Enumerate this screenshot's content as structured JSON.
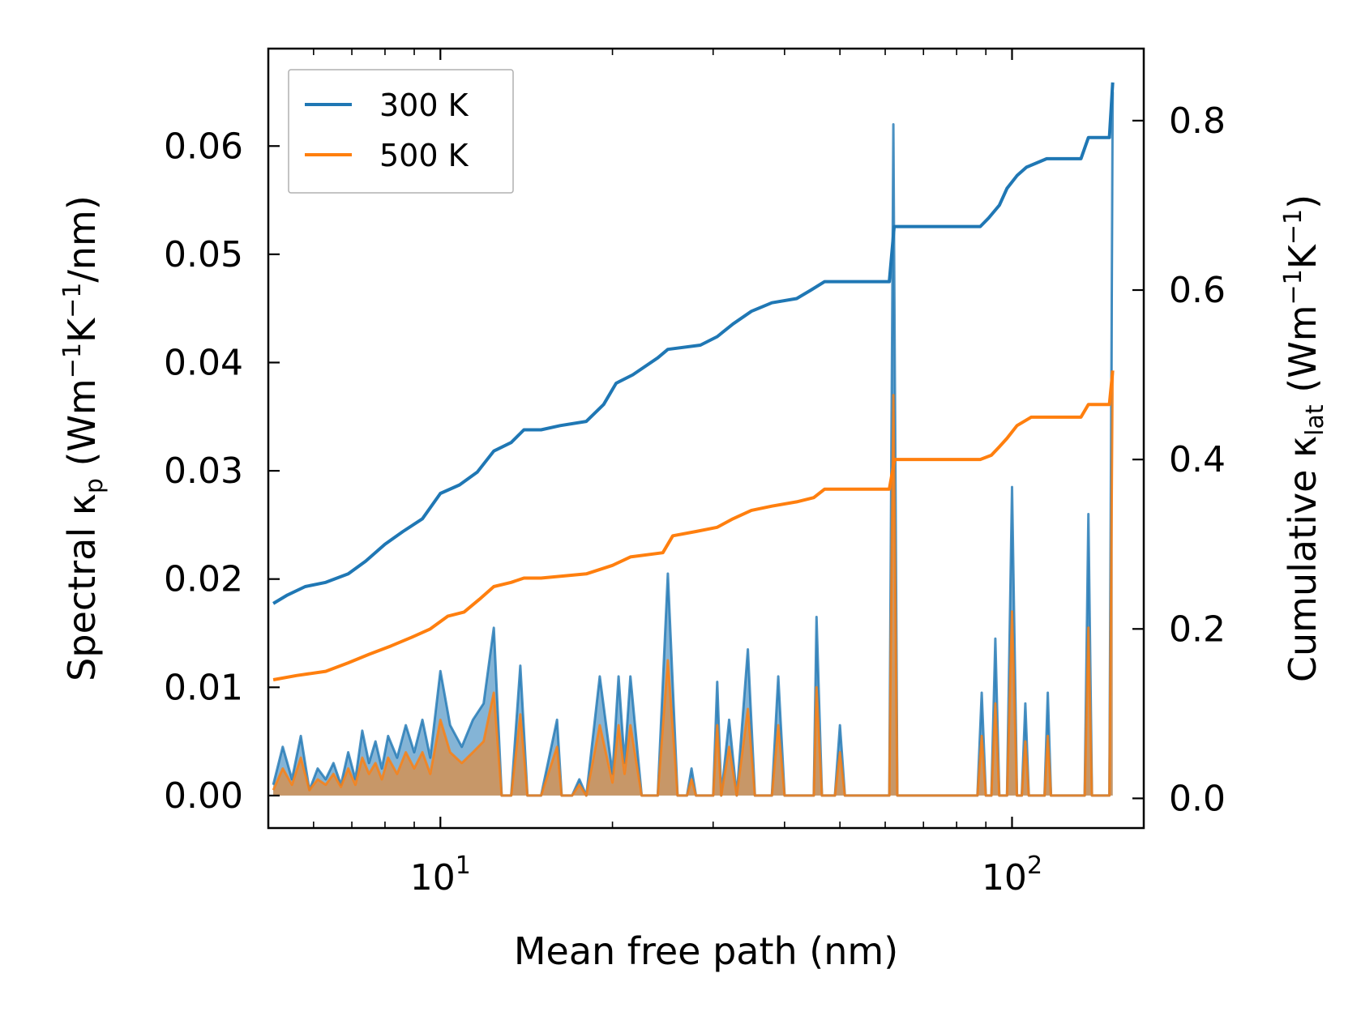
{
  "chart_data": {
    "type": "line",
    "xscale": "log",
    "xlabel": "Mean free path (nm)",
    "ylabel_left": {
      "main": "Spectral κ",
      "sub": "p",
      "unit_open": " (Wm",
      "sup1": "−1",
      "unit_mid": "K",
      "sup2": "−1",
      "unit_close": "/nm)"
    },
    "ylabel_right": {
      "main": "Cumulative κ",
      "sub": "lat",
      "unit_open": " (Wm",
      "sup1": "−1",
      "unit_mid": "K",
      "sup2": "−1",
      "unit_close": ")"
    },
    "xlim": [
      5,
      170
    ],
    "ylim_left": [
      -0.003,
      0.069
    ],
    "ylim_right": [
      -0.035,
      0.885
    ],
    "x_ticks": [
      {
        "value": 10,
        "base": "10",
        "exp": "1"
      },
      {
        "value": 100,
        "base": "10",
        "exp": "2"
      }
    ],
    "y_ticks_left": [
      {
        "value": 0.0,
        "label": "0.00"
      },
      {
        "value": 0.01,
        "label": "0.01"
      },
      {
        "value": 0.02,
        "label": "0.02"
      },
      {
        "value": 0.03,
        "label": "0.03"
      },
      {
        "value": 0.04,
        "label": "0.04"
      },
      {
        "value": 0.05,
        "label": "0.05"
      },
      {
        "value": 0.06,
        "label": "0.06"
      }
    ],
    "y_ticks_right": [
      {
        "value": 0.0,
        "label": "0.0"
      },
      {
        "value": 0.2,
        "label": "0.2"
      },
      {
        "value": 0.4,
        "label": "0.4"
      },
      {
        "value": 0.6,
        "label": "0.6"
      },
      {
        "value": 0.8,
        "label": "0.8"
      }
    ],
    "legend": {
      "position": "top-left",
      "entries": [
        "300 K",
        "500 K"
      ]
    },
    "series": [
      {
        "name": "300 K",
        "color": "#1f77b4",
        "cumulative": [
          [
            5.1,
            0.23
          ],
          [
            5.4,
            0.24
          ],
          [
            5.8,
            0.25
          ],
          [
            6.3,
            0.255
          ],
          [
            6.9,
            0.265
          ],
          [
            7.4,
            0.28
          ],
          [
            8.0,
            0.3
          ],
          [
            8.6,
            0.315
          ],
          [
            9.3,
            0.33
          ],
          [
            10.0,
            0.36
          ],
          [
            10.8,
            0.37
          ],
          [
            11.6,
            0.385
          ],
          [
            12.4,
            0.41
          ],
          [
            13.3,
            0.42
          ],
          [
            14.0,
            0.435
          ],
          [
            15.0,
            0.435
          ],
          [
            16.2,
            0.44
          ],
          [
            18.0,
            0.445
          ],
          [
            19.3,
            0.465
          ],
          [
            20.3,
            0.49
          ],
          [
            21.7,
            0.5
          ],
          [
            24.0,
            0.52
          ],
          [
            25.0,
            0.53
          ],
          [
            28.5,
            0.535
          ],
          [
            30.5,
            0.545
          ],
          [
            32.5,
            0.56
          ],
          [
            35.0,
            0.575
          ],
          [
            38.0,
            0.585
          ],
          [
            42.0,
            0.59
          ],
          [
            44.5,
            0.6
          ],
          [
            47.0,
            0.61
          ],
          [
            61.0,
            0.61
          ],
          [
            62.2,
            0.675
          ],
          [
            70.0,
            0.675
          ],
          [
            88.0,
            0.675
          ],
          [
            91.0,
            0.685
          ],
          [
            95.0,
            0.7
          ],
          [
            98.0,
            0.72
          ],
          [
            102.0,
            0.735
          ],
          [
            106.0,
            0.745
          ],
          [
            115.0,
            0.755
          ],
          [
            132.0,
            0.755
          ],
          [
            136.0,
            0.78
          ],
          [
            148.0,
            0.78
          ],
          [
            150.0,
            0.845
          ]
        ],
        "spectral": [
          [
            5.1,
            0.001
          ],
          [
            5.3,
            0.0045
          ],
          [
            5.5,
            0.0015
          ],
          [
            5.7,
            0.0055
          ],
          [
            5.9,
            0.0005
          ],
          [
            6.1,
            0.0025
          ],
          [
            6.3,
            0.0015
          ],
          [
            6.5,
            0.003
          ],
          [
            6.7,
            0.001
          ],
          [
            6.9,
            0.004
          ],
          [
            7.1,
            0.0015
          ],
          [
            7.3,
            0.006
          ],
          [
            7.5,
            0.003
          ],
          [
            7.7,
            0.005
          ],
          [
            7.9,
            0.0025
          ],
          [
            8.1,
            0.0055
          ],
          [
            8.4,
            0.0035
          ],
          [
            8.7,
            0.0065
          ],
          [
            9.0,
            0.004
          ],
          [
            9.3,
            0.007
          ],
          [
            9.6,
            0.0035
          ],
          [
            10.0,
            0.0115
          ],
          [
            10.4,
            0.0065
          ],
          [
            10.9,
            0.0045
          ],
          [
            11.4,
            0.007
          ],
          [
            11.9,
            0.0085
          ],
          [
            12.4,
            0.0155
          ],
          [
            12.8,
            0.0
          ],
          [
            13.3,
            0.0
          ],
          [
            13.8,
            0.012
          ],
          [
            14.2,
            0.0
          ],
          [
            15.0,
            0.0
          ],
          [
            16.0,
            0.007
          ],
          [
            16.3,
            0.0
          ],
          [
            17.0,
            0.0
          ],
          [
            17.5,
            0.0015
          ],
          [
            18.0,
            0.0
          ],
          [
            19.0,
            0.011
          ],
          [
            20.0,
            0.002
          ],
          [
            20.5,
            0.011
          ],
          [
            21.0,
            0.003
          ],
          [
            21.5,
            0.011
          ],
          [
            22.5,
            0.0
          ],
          [
            24.0,
            0.0
          ],
          [
            25.0,
            0.0205
          ],
          [
            26.0,
            0.0
          ],
          [
            27.0,
            0.0
          ],
          [
            27.5,
            0.0025
          ],
          [
            28.0,
            0.0
          ],
          [
            30.0,
            0.0
          ],
          [
            30.5,
            0.0105
          ],
          [
            31.0,
            0.0
          ],
          [
            32.0,
            0.007
          ],
          [
            33.0,
            0.0
          ],
          [
            34.5,
            0.0135
          ],
          [
            35.5,
            0.0
          ],
          [
            38.0,
            0.0
          ],
          [
            39.0,
            0.011
          ],
          [
            40.0,
            0.0
          ],
          [
            45.0,
            0.0
          ],
          [
            45.5,
            0.0165
          ],
          [
            46.5,
            0.0
          ],
          [
            49.0,
            0.0
          ],
          [
            50.0,
            0.0065
          ],
          [
            51.0,
            0.0
          ],
          [
            61.0,
            0.0
          ],
          [
            62.0,
            0.062
          ],
          [
            63.0,
            0.0
          ],
          [
            85.0,
            0.0
          ],
          [
            87.0,
            0.0
          ],
          [
            88.5,
            0.0095
          ],
          [
            90.0,
            0.0
          ],
          [
            92.0,
            0.0
          ],
          [
            93.5,
            0.0145
          ],
          [
            95.0,
            0.0
          ],
          [
            98.0,
            0.0
          ],
          [
            100.0,
            0.0285
          ],
          [
            102.0,
            0.0
          ],
          [
            104.0,
            0.0
          ],
          [
            105.5,
            0.0085
          ],
          [
            107.0,
            0.0
          ],
          [
            114.0,
            0.0
          ],
          [
            115.5,
            0.0095
          ],
          [
            117.0,
            0.0
          ],
          [
            134.0,
            0.0
          ],
          [
            136.0,
            0.026
          ],
          [
            138.0,
            0.0
          ],
          [
            148.0,
            0.0
          ],
          [
            150.0,
            0.065
          ]
        ]
      },
      {
        "name": "500 K",
        "color": "#ff7f0e",
        "cumulative": [
          [
            5.1,
            0.14
          ],
          [
            5.6,
            0.145
          ],
          [
            6.3,
            0.15
          ],
          [
            6.9,
            0.16
          ],
          [
            7.5,
            0.17
          ],
          [
            8.2,
            0.18
          ],
          [
            8.9,
            0.19
          ],
          [
            9.6,
            0.2
          ],
          [
            10.3,
            0.215
          ],
          [
            11.0,
            0.22
          ],
          [
            11.7,
            0.235
          ],
          [
            12.4,
            0.25
          ],
          [
            13.3,
            0.255
          ],
          [
            14.0,
            0.26
          ],
          [
            15.0,
            0.26
          ],
          [
            18.0,
            0.265
          ],
          [
            20.0,
            0.275
          ],
          [
            21.5,
            0.285
          ],
          [
            24.5,
            0.29
          ],
          [
            25.5,
            0.31
          ],
          [
            28.0,
            0.315
          ],
          [
            30.5,
            0.32
          ],
          [
            32.5,
            0.33
          ],
          [
            35.0,
            0.34
          ],
          [
            38.0,
            0.345
          ],
          [
            42.0,
            0.35
          ],
          [
            45.0,
            0.355
          ],
          [
            47.0,
            0.365
          ],
          [
            61.0,
            0.365
          ],
          [
            62.3,
            0.4
          ],
          [
            70.0,
            0.4
          ],
          [
            88.0,
            0.4
          ],
          [
            92.0,
            0.405
          ],
          [
            95.0,
            0.415
          ],
          [
            98.0,
            0.425
          ],
          [
            102.0,
            0.44
          ],
          [
            108.0,
            0.45
          ],
          [
            132.0,
            0.45
          ],
          [
            136.0,
            0.465
          ],
          [
            148.0,
            0.465
          ],
          [
            150.0,
            0.505
          ]
        ],
        "spectral": [
          [
            5.1,
            0.0005
          ],
          [
            5.3,
            0.0025
          ],
          [
            5.5,
            0.001
          ],
          [
            5.7,
            0.0035
          ],
          [
            5.9,
            0.0005
          ],
          [
            6.1,
            0.0015
          ],
          [
            6.3,
            0.001
          ],
          [
            6.5,
            0.002
          ],
          [
            6.7,
            0.0008
          ],
          [
            6.9,
            0.0025
          ],
          [
            7.1,
            0.001
          ],
          [
            7.3,
            0.0035
          ],
          [
            7.5,
            0.002
          ],
          [
            7.7,
            0.003
          ],
          [
            7.9,
            0.0015
          ],
          [
            8.1,
            0.0035
          ],
          [
            8.4,
            0.002
          ],
          [
            8.7,
            0.004
          ],
          [
            9.0,
            0.0025
          ],
          [
            9.3,
            0.004
          ],
          [
            9.6,
            0.002
          ],
          [
            10.0,
            0.007
          ],
          [
            10.4,
            0.004
          ],
          [
            10.9,
            0.003
          ],
          [
            11.4,
            0.004
          ],
          [
            11.9,
            0.005
          ],
          [
            12.4,
            0.0095
          ],
          [
            12.8,
            0.0
          ],
          [
            13.3,
            0.0
          ],
          [
            13.8,
            0.0075
          ],
          [
            14.2,
            0.0
          ],
          [
            15.0,
            0.0
          ],
          [
            16.0,
            0.0045
          ],
          [
            16.3,
            0.0
          ],
          [
            17.0,
            0.0
          ],
          [
            17.5,
            0.001
          ],
          [
            18.0,
            0.0
          ],
          [
            19.0,
            0.0065
          ],
          [
            20.0,
            0.0012
          ],
          [
            20.5,
            0.0065
          ],
          [
            21.0,
            0.002
          ],
          [
            21.5,
            0.0065
          ],
          [
            22.5,
            0.0
          ],
          [
            24.0,
            0.0
          ],
          [
            25.0,
            0.0125
          ],
          [
            26.0,
            0.0
          ],
          [
            27.0,
            0.0
          ],
          [
            27.5,
            0.0015
          ],
          [
            28.0,
            0.0
          ],
          [
            30.0,
            0.0
          ],
          [
            30.5,
            0.0065
          ],
          [
            31.0,
            0.0
          ],
          [
            32.0,
            0.0045
          ],
          [
            33.0,
            0.0
          ],
          [
            34.5,
            0.008
          ],
          [
            35.5,
            0.0
          ],
          [
            38.0,
            0.0
          ],
          [
            39.0,
            0.0065
          ],
          [
            40.0,
            0.0
          ],
          [
            45.0,
            0.0
          ],
          [
            45.5,
            0.01
          ],
          [
            46.5,
            0.0
          ],
          [
            49.0,
            0.0
          ],
          [
            50.0,
            0.004
          ],
          [
            51.0,
            0.0
          ],
          [
            61.0,
            0.0
          ],
          [
            62.0,
            0.037
          ],
          [
            63.0,
            0.0
          ],
          [
            85.0,
            0.0
          ],
          [
            87.0,
            0.0
          ],
          [
            88.5,
            0.0055
          ],
          [
            90.0,
            0.0
          ],
          [
            92.0,
            0.0
          ],
          [
            93.5,
            0.0085
          ],
          [
            95.0,
            0.0
          ],
          [
            98.0,
            0.0
          ],
          [
            100.0,
            0.017
          ],
          [
            102.0,
            0.0
          ],
          [
            104.0,
            0.0
          ],
          [
            105.5,
            0.005
          ],
          [
            107.0,
            0.0
          ],
          [
            114.0,
            0.0
          ],
          [
            115.5,
            0.0055
          ],
          [
            117.0,
            0.0
          ],
          [
            134.0,
            0.0
          ],
          [
            136.0,
            0.0155
          ],
          [
            138.0,
            0.0
          ],
          [
            148.0,
            0.0
          ],
          [
            150.0,
            0.039
          ]
        ]
      }
    ]
  }
}
